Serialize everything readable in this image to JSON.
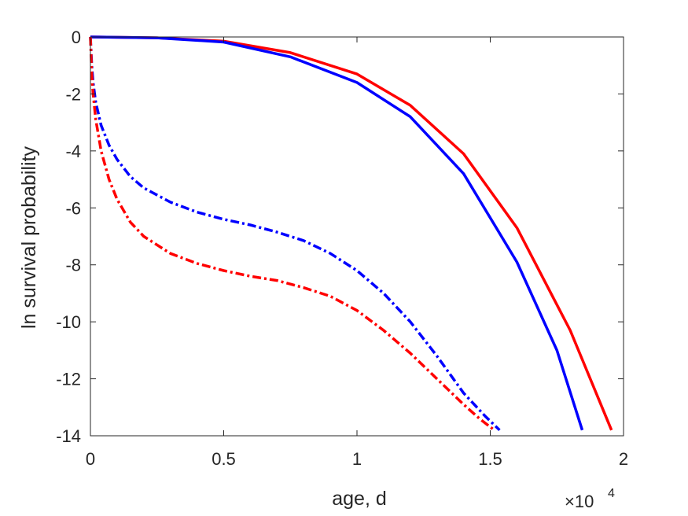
{
  "chart_data": {
    "type": "line",
    "title": "",
    "xlabel": "age, d",
    "ylabel": "ln survival probability",
    "x_exponent_label": "×10",
    "x_exponent_power": "4",
    "xlim": [
      0,
      20000
    ],
    "ylim": [
      -14,
      0
    ],
    "xticks": [
      0,
      5000,
      10000,
      15000,
      20000
    ],
    "xtick_labels": [
      "0",
      "0.5",
      "1",
      "1.5",
      "2"
    ],
    "yticks": [
      0,
      -2,
      -4,
      -6,
      -8,
      -10,
      -12,
      -14
    ],
    "ytick_labels": [
      "0",
      "-2",
      "-4",
      "-6",
      "-8",
      "-10",
      "-12",
      "-14"
    ],
    "grid": false,
    "legend": "none",
    "series": [
      {
        "color": "#ff0000",
        "style": "solid",
        "x": [
          0,
          2500,
          5000,
          7500,
          10000,
          12000,
          14000,
          16000,
          18000,
          19550
        ],
        "y": [
          0,
          -0.03,
          -0.15,
          -0.55,
          -1.3,
          -2.4,
          -4.1,
          -6.7,
          -10.3,
          -13.8
        ]
      },
      {
        "color": "#0000ff",
        "style": "solid",
        "x": [
          0,
          2500,
          5000,
          7500,
          10000,
          12000,
          14000,
          16000,
          17500,
          18450
        ],
        "y": [
          0,
          -0.03,
          -0.18,
          -0.7,
          -1.6,
          -2.8,
          -4.8,
          -7.9,
          -11.0,
          -13.8
        ]
      },
      {
        "color": "#0000ff",
        "style": "dashdot",
        "x": [
          0,
          50,
          100,
          200,
          400,
          700,
          1000,
          1500,
          2000,
          3000,
          4000,
          5000,
          6000,
          7000,
          8000,
          9000,
          10000,
          11000,
          12000,
          13000,
          14000,
          14800,
          15350
        ],
        "y": [
          0,
          -1.0,
          -1.6,
          -2.3,
          -3.1,
          -3.8,
          -4.3,
          -4.9,
          -5.3,
          -5.8,
          -6.15,
          -6.4,
          -6.6,
          -6.85,
          -7.15,
          -7.6,
          -8.2,
          -9.0,
          -10.0,
          -11.2,
          -12.5,
          -13.3,
          -13.8
        ]
      },
      {
        "color": "#ff0000",
        "style": "dashdot",
        "x": [
          0,
          50,
          100,
          200,
          400,
          700,
          1000,
          1500,
          2000,
          3000,
          4000,
          5000,
          6000,
          7000,
          8000,
          9000,
          10000,
          11000,
          12000,
          13000,
          14000,
          14600,
          15150
        ],
        "y": [
          0,
          -1.3,
          -2.0,
          -2.9,
          -4.0,
          -5.0,
          -5.7,
          -6.5,
          -7.0,
          -7.6,
          -7.95,
          -8.2,
          -8.4,
          -8.55,
          -8.8,
          -9.1,
          -9.6,
          -10.3,
          -11.1,
          -12.0,
          -12.9,
          -13.4,
          -13.8
        ]
      }
    ]
  }
}
